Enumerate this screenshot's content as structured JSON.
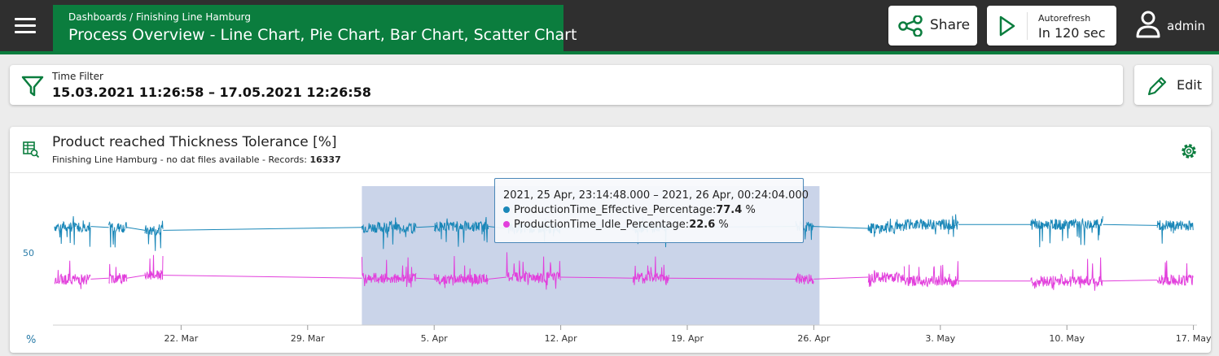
{
  "header": {
    "breadcrumb": "Dashboards / Finishing Line Hamburg",
    "title": "Process Overview - Line Chart, Pie Chart, Bar Chart, Scatter Chart",
    "share_label": "Share",
    "autorefresh_label": "Autorefresh",
    "autorefresh_value": "In 120 sec",
    "user_name": "admin"
  },
  "filter": {
    "label": "Time Filter",
    "value": "15.03.2021 11:26:58 – 17.05.2021 12:26:58",
    "edit_label": "Edit"
  },
  "chart_panel": {
    "title": "Product reached Thickness Tolerance [%]",
    "subtitle_prefix": "Finishing Line Hamburg - no dat files available - Records: ",
    "records": "16337"
  },
  "tooltip": {
    "time": "2021, 25 Apr, 23:14:48.000 – 2021, 26 Apr, 00:24:04.000",
    "s1_name": "ProductionTime_Effective_Percentage:",
    "s1_value": "77.4",
    "s2_name": "ProductionTime_Idle_Percentage:",
    "s2_value": "22.6",
    "unit": "%"
  },
  "colors": {
    "brand": "#0b7d3e",
    "effective": "#1a87b8",
    "idle": "#e23fdc",
    "selection": "#a9b9db"
  },
  "chart_data": {
    "type": "line",
    "ylabel": "%",
    "ytick": "50",
    "x_ticks": [
      "22. Mar",
      "29. Mar",
      "5. Apr",
      "12. Apr",
      "19. Apr",
      "26. Apr",
      "3. May",
      "10. May",
      "17. May"
    ],
    "selection": [
      "1. Apr",
      "26. Apr"
    ],
    "series": [
      {
        "name": "ProductionTime_Effective_Percentage",
        "color": "#1a87b8",
        "segments": [
          {
            "from": "15. Mar",
            "to": "17. Mar",
            "mean": 77
          },
          {
            "from": "18. Mar",
            "to": "19. Mar",
            "mean": 76
          },
          {
            "from": "20. Mar",
            "to": "21. Mar",
            "mean": 73
          },
          {
            "from": "1. Apr",
            "to": "4. Apr",
            "mean": 76
          },
          {
            "from": "5. Apr",
            "to": "8. Apr",
            "mean": 77
          },
          {
            "from": "9. Apr",
            "to": "12. Apr",
            "mean": 75
          },
          {
            "from": "16. Apr",
            "to": "18. Apr",
            "mean": 76
          },
          {
            "from": "25. Apr",
            "to": "26. Apr",
            "mean": 77
          },
          {
            "from": "29. Apr",
            "to": "1. May",
            "mean": 75
          },
          {
            "from": "1. May",
            "to": "4. May",
            "mean": 79
          },
          {
            "from": "8. May",
            "to": "12. May",
            "mean": 79
          },
          {
            "from": "15. May",
            "to": "17. May",
            "mean": 78
          }
        ]
      },
      {
        "name": "ProductionTime_Idle_Percentage",
        "color": "#e23fdc",
        "segments": [
          {
            "from": "15. Mar",
            "to": "17. Mar",
            "mean": 23
          },
          {
            "from": "18. Mar",
            "to": "19. Mar",
            "mean": 24
          },
          {
            "from": "20. Mar",
            "to": "21. Mar",
            "mean": 27
          },
          {
            "from": "1. Apr",
            "to": "4. Apr",
            "mean": 24
          },
          {
            "from": "5. Apr",
            "to": "8. Apr",
            "mean": 23
          },
          {
            "from": "9. Apr",
            "to": "12. Apr",
            "mean": 25
          },
          {
            "from": "16. Apr",
            "to": "18. Apr",
            "mean": 24
          },
          {
            "from": "25. Apr",
            "to": "26. Apr",
            "mean": 23
          },
          {
            "from": "29. Apr",
            "to": "1. May",
            "mean": 25
          },
          {
            "from": "1. May",
            "to": "4. May",
            "mean": 21
          },
          {
            "from": "8. May",
            "to": "12. May",
            "mean": 21
          },
          {
            "from": "15. May",
            "to": "17. May",
            "mean": 22
          }
        ]
      }
    ]
  }
}
